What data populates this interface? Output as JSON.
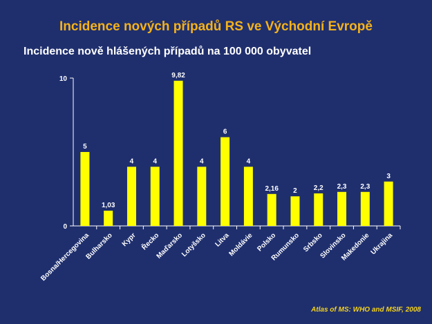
{
  "header": {
    "title": "Incidence nových případů RS ve Východní Evropě",
    "source": "Atlas of MS: WHO and MSIF, 2008"
  },
  "chart_data": {
    "type": "bar",
    "title": "Incidence nově hlášených případů na 100 000 obyvatel",
    "categories": [
      "Bosna/Hercegovina",
      "Bulharsko",
      "Kypr",
      "Řecko",
      "Maďarsko",
      "Lotyšsko",
      "Litva",
      "Moldávie",
      "Polsko",
      "Rumunsko",
      "Srbsko",
      "Slovinsko",
      "Makedonie",
      "Ukrajina"
    ],
    "values": [
      5,
      1.03,
      4,
      4,
      9.82,
      4,
      6,
      4,
      2.16,
      2,
      2.2,
      2.3,
      2.3,
      3
    ],
    "value_labels": [
      "5",
      "1,03",
      "4",
      "4",
      "9,82",
      "4",
      "6",
      "4",
      "2,16",
      "2",
      "2,2",
      "2,3",
      "2,3",
      "3"
    ],
    "y_ticks": [
      {
        "value": 0,
        "label": "0"
      },
      {
        "value": 10,
        "label": "10"
      }
    ],
    "ylim": [
      0,
      10
    ],
    "xlabel": "",
    "ylabel": "",
    "grid": false,
    "bar_color": "#ffff00",
    "axis_color": "#ffffff"
  }
}
